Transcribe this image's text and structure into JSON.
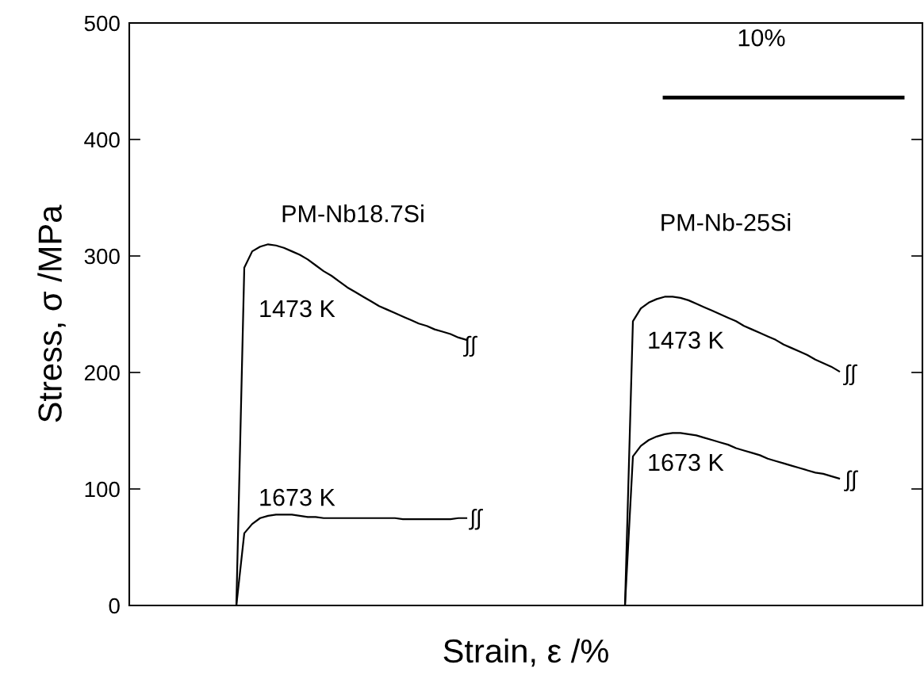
{
  "chart_data": {
    "type": "line",
    "xlabel": "Strain, ε /%",
    "ylabel": "Stress, σ /MPa",
    "categories": [
      null,
      null,
      null,
      null,
      null,
      null,
      null,
      null,
      null,
      null,
      null,
      null,
      null,
      null,
      null,
      null,
      null,
      null,
      null,
      null,
      null,
      null,
      null,
      null,
      null,
      null,
      null,
      null,
      null,
      null,
      null,
      null,
      null,
      null,
      null,
      null,
      null,
      null,
      null,
      null,
      null,
      null,
      null,
      null,
      null,
      null,
      null,
      null,
      null,
      null,
      null,
      null,
      null,
      null,
      null,
      null,
      null,
      null,
      null,
      null,
      null,
      null,
      null,
      null,
      null,
      null,
      null,
      null,
      null,
      null,
      null,
      null,
      null,
      null,
      null,
      null,
      null,
      null,
      null,
      null,
      null,
      null,
      null,
      null,
      null,
      null,
      null,
      null,
      null,
      null,
      null,
      null,
      null,
      null,
      null,
      null,
      null,
      null,
      null,
      null
    ],
    "series": [
      {
        "name": "1473 K",
        "color": "#000000",
        "values": [
          null,
          null,
          null,
          null,
          null,
          null,
          null,
          null,
          null,
          null,
          null,
          null,
          null,
          0,
          290,
          304,
          308,
          310,
          309,
          307,
          304,
          301,
          297,
          292,
          287,
          283,
          278,
          273,
          269,
          265,
          261,
          257,
          254,
          251,
          248,
          245,
          242,
          240,
          237,
          235,
          233,
          230,
          228,
          null,
          null,
          null,
          null,
          null,
          null,
          null,
          null,
          null,
          null,
          null,
          null,
          null,
          null,
          null,
          null,
          null,
          null,
          null,
          null,
          null,
          null,
          null,
          null,
          null,
          null,
          null,
          null,
          null,
          null,
          null,
          null,
          null,
          null,
          null,
          null,
          null,
          null,
          null,
          null,
          null,
          null,
          null,
          null,
          null,
          null,
          null,
          null,
          null,
          null,
          null,
          null,
          null,
          null,
          null,
          null,
          null
        ]
      },
      {
        "name": "1673 K",
        "color": "#000000",
        "values": [
          null,
          null,
          null,
          null,
          null,
          null,
          null,
          null,
          null,
          null,
          null,
          null,
          null,
          0,
          62,
          70,
          75,
          77,
          78,
          78,
          78,
          77,
          76,
          76,
          75,
          75,
          75,
          75,
          75,
          75,
          75,
          75,
          75,
          75,
          74,
          74,
          74,
          74,
          74,
          74,
          74,
          75,
          75,
          null,
          null,
          null,
          null,
          null,
          null,
          null,
          null,
          null,
          null,
          null,
          null,
          null,
          null,
          null,
          null,
          null,
          null,
          null,
          null,
          null,
          null,
          null,
          null,
          null,
          null,
          null,
          null,
          null,
          null,
          null,
          null,
          null,
          null,
          null,
          null,
          null,
          null,
          null,
          null,
          null,
          null,
          null,
          null,
          null,
          null,
          null,
          null,
          null,
          null,
          null,
          null,
          null,
          null,
          null,
          null,
          null
        ]
      },
      {
        "name": "1473 K",
        "color": "#000000",
        "values": [
          null,
          null,
          null,
          null,
          null,
          null,
          null,
          null,
          null,
          null,
          null,
          null,
          null,
          null,
          null,
          null,
          null,
          null,
          null,
          null,
          null,
          null,
          null,
          null,
          null,
          null,
          null,
          null,
          null,
          null,
          null,
          null,
          null,
          null,
          null,
          null,
          null,
          null,
          null,
          null,
          null,
          null,
          null,
          null,
          null,
          null,
          null,
          null,
          null,
          null,
          null,
          null,
          null,
          null,
          null,
          null,
          null,
          null,
          null,
          null,
          null,
          null,
          0,
          244,
          255,
          260,
          263,
          265,
          265,
          264,
          262,
          259,
          256,
          253,
          250,
          247,
          244,
          240,
          237,
          234,
          231,
          228,
          224,
          221,
          218,
          215,
          211,
          208,
          205,
          201,
          null,
          null,
          null,
          null,
          null,
          null,
          null,
          null,
          null,
          null
        ]
      },
      {
        "name": "1673 K",
        "color": "#000000",
        "values": [
          null,
          null,
          null,
          null,
          null,
          null,
          null,
          null,
          null,
          null,
          null,
          null,
          null,
          null,
          null,
          null,
          null,
          null,
          null,
          null,
          null,
          null,
          null,
          null,
          null,
          null,
          null,
          null,
          null,
          null,
          null,
          null,
          null,
          null,
          null,
          null,
          null,
          null,
          null,
          null,
          null,
          null,
          null,
          null,
          null,
          null,
          null,
          null,
          null,
          null,
          null,
          null,
          null,
          null,
          null,
          null,
          null,
          null,
          null,
          null,
          null,
          null,
          0,
          128,
          137,
          142,
          145,
          147,
          148,
          148,
          147,
          146,
          144,
          142,
          140,
          138,
          135,
          133,
          131,
          129,
          126,
          124,
          122,
          120,
          118,
          116,
          114,
          113,
          111,
          109,
          null,
          null,
          null,
          null,
          null,
          null,
          null,
          null,
          null,
          null
        ]
      },
      {
        "color": "#000000",
        "values": [
          null,
          null,
          null,
          null,
          null,
          null,
          null,
          null,
          null,
          null,
          null,
          null,
          null,
          null,
          null,
          null,
          null,
          null,
          null,
          null,
          null,
          null,
          null,
          null,
          null,
          null,
          null,
          null,
          null,
          null,
          null,
          null,
          null,
          null,
          null,
          null,
          null,
          null,
          null,
          null,
          null,
          null,
          null,
          null,
          null,
          null,
          null,
          null,
          null,
          null,
          null,
          null,
          null,
          null,
          null,
          null,
          null,
          null,
          null,
          null,
          null,
          null,
          null,
          null,
          null,
          null,
          null,
          436,
          436,
          436,
          436,
          436,
          436,
          436,
          436,
          436,
          436,
          436,
          436,
          436,
          436,
          436,
          436,
          436,
          436,
          436,
          436,
          436,
          436,
          436,
          436,
          436,
          436,
          436,
          436,
          436,
          436,
          436,
          null,
          null
        ]
      }
    ],
    "ylim": [
      0,
      500
    ],
    "yticks": [
      0,
      100,
      200,
      300,
      400,
      500
    ],
    "tick_labels": "y",
    "legend": false,
    "grid": false,
    "marker": "none",
    "line_style": "solid",
    "annotations": [
      "PM-Nb18.7Si",
      "PM-Nb-25Si",
      "10%",
      "∫∫",
      "∫∫",
      "∫∫",
      "∫∫"
    ]
  }
}
